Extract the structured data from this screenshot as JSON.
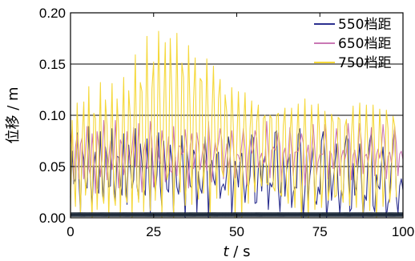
{
  "chart_data": {
    "type": "line",
    "xlabel": "t / s",
    "xlabel_italic": "t",
    "xlabel_rest": " / s",
    "ylabel": "位移 / m",
    "xlim": [
      0,
      100
    ],
    "ylim": [
      0,
      0.2
    ],
    "x_ticks": [
      0,
      25,
      50,
      75,
      100
    ],
    "x_tick_labels": [
      "0",
      "25",
      "50",
      "75",
      "100"
    ],
    "y_ticks": [
      0,
      0.05,
      0.1,
      0.15,
      0.2
    ],
    "y_tick_labels": [
      "0.00",
      "0.05",
      "0.10",
      "0.15",
      "0.20"
    ],
    "grid": "horizontal",
    "legend_position": "top-right",
    "sample_step_s": 0.5,
    "series": [
      {
        "name": "550档距",
        "color": "#2b2f8f",
        "values": [
          0.02,
          0.065,
          0.033,
          0.038,
          0.083,
          0.038,
          0.005,
          0.067,
          0.058,
          0.032,
          0.029,
          0.089,
          0.039,
          0.012,
          0.049,
          0.064,
          0.03,
          0.024,
          0.084,
          0.042,
          0.016,
          0.069,
          0.057,
          0.03,
          0.031,
          0.087,
          0.037,
          0.016,
          0.06,
          0.059,
          0.033,
          0.022,
          0.082,
          0.041,
          0.013,
          0.071,
          0.05,
          0.029,
          0.037,
          0.087,
          0.031,
          0.018,
          0.072,
          0.053,
          0.03,
          0.022,
          0.077,
          0.047,
          0.004,
          0.068,
          0.038,
          0.026,
          0.042,
          0.083,
          0.031,
          0.01,
          0.075,
          0.051,
          0.028,
          0.025,
          0.071,
          0.055,
          0.002,
          0.059,
          0.03,
          0.023,
          0.045,
          0.08,
          0.04,
          0.0,
          0.067,
          0.053,
          0.031,
          0.029,
          0.066,
          0.061,
          0.005,
          0.045,
          0.029,
          0.024,
          0.046,
          0.079,
          0.053,
          0.0,
          0.051,
          0.056,
          0.038,
          0.032,
          0.062,
          0.064,
          0.019,
          0.03,
          0.033,
          0.027,
          0.045,
          0.079,
          0.067,
          0.002,
          0.032,
          0.055,
          0.047,
          0.03,
          0.058,
          0.063,
          0.035,
          0.015,
          0.036,
          0.029,
          0.041,
          0.081,
          0.078,
          0.014,
          0.015,
          0.049,
          0.056,
          0.026,
          0.053,
          0.06,
          0.051,
          0.008,
          0.034,
          0.03,
          0.036,
          0.083,
          0.085,
          0.029,
          0.006,
          0.038,
          0.062,
          0.021,
          0.047,
          0.056,
          0.062,
          0.01,
          0.025,
          0.03,
          0.029,
          0.081,
          0.087,
          0.046,
          0.0,
          0.026,
          0.064,
          0.017,
          0.041,
          0.054,
          0.069,
          0.018,
          0.013,
          0.03,
          0.023,
          0.075,
          0.084,
          0.064,
          0.0,
          0.016,
          0.061,
          0.017,
          0.035,
          0.052,
          0.072,
          0.028,
          0.004,
          0.027,
          0.019,
          0.068,
          0.08,
          0.076,
          0.006,
          0.009,
          0.053,
          0.022,
          0.03,
          0.052,
          0.072,
          0.038,
          0.0,
          0.022,
          0.017,
          0.059,
          0.075,
          0.083,
          0.012,
          0.006,
          0.042,
          0.031,
          0.028,
          0.052,
          0.069,
          0.044,
          0.0,
          0.014,
          0.019,
          0.052,
          0.072,
          0.087,
          0.02,
          0.004,
          0.031,
          0.038,
          0.027
        ]
      },
      {
        "name": "650档距",
        "color": "#c978b4",
        "values": [
          0.072,
          0.087,
          0.037,
          0.069,
          0.081,
          0.038,
          0.072,
          0.078,
          0.038,
          0.063,
          0.089,
          0.048,
          0.041,
          0.082,
          0.06,
          0.024,
          0.084,
          0.07,
          0.04,
          0.057,
          0.095,
          0.063,
          0.037,
          0.058,
          0.075,
          0.047,
          0.058,
          0.095,
          0.056,
          0.029,
          0.076,
          0.071,
          0.042,
          0.053,
          0.084,
          0.062,
          0.052,
          0.066,
          0.088,
          0.05,
          0.049,
          0.092,
          0.054,
          0.025,
          0.065,
          0.074,
          0.048,
          0.052,
          0.094,
          0.075,
          0.03,
          0.052,
          0.08,
          0.06,
          0.053,
          0.085,
          0.069,
          0.035,
          0.059,
          0.079,
          0.046,
          0.044,
          0.089,
          0.059,
          0.041,
          0.07,
          0.07,
          0.062,
          0.064,
          0.086,
          0.067,
          0.029,
          0.071,
          0.082,
          0.048,
          0.061,
          0.083,
          0.071,
          0.047,
          0.059,
          0.072,
          0.057,
          0.046,
          0.094,
          0.067,
          0.035,
          0.058,
          0.074,
          0.065,
          0.073,
          0.087,
          0.076,
          0.038,
          0.057,
          0.072,
          0.049,
          0.06,
          0.085,
          0.068,
          0.039,
          0.062,
          0.061,
          0.055,
          0.071,
          0.087,
          0.067,
          0.032,
          0.059,
          0.077,
          0.063,
          0.067,
          0.085,
          0.078,
          0.049,
          0.058,
          0.063,
          0.053,
          0.055,
          0.094,
          0.065,
          0.039,
          0.066,
          0.069,
          0.066,
          0.07,
          0.083,
          0.07,
          0.035,
          0.062,
          0.068,
          0.051,
          0.063,
          0.088,
          0.066,
          0.041,
          0.064,
          0.064,
          0.065,
          0.072,
          0.082,
          0.073,
          0.032,
          0.062,
          0.071,
          0.049,
          0.066,
          0.091,
          0.066,
          0.042,
          0.055,
          0.062,
          0.062,
          0.062,
          0.091,
          0.069,
          0.038,
          0.065,
          0.062,
          0.048,
          0.069,
          0.087,
          0.069,
          0.041,
          0.059,
          0.066,
          0.057,
          0.064,
          0.092,
          0.073,
          0.037,
          0.061,
          0.066,
          0.051,
          0.066,
          0.092,
          0.074,
          0.043,
          0.06,
          0.062,
          0.054,
          0.064,
          0.088,
          0.068,
          0.041,
          0.061,
          0.067,
          0.058,
          0.066,
          0.091,
          0.072,
          0.038,
          0.06,
          0.064,
          0.054,
          0.064,
          0.089,
          0.072,
          0.041,
          0.062,
          0.065,
          0.057
        ]
      },
      {
        "name": "750档距",
        "color": "#f5d83a",
        "values": [
          0.008,
          0.095,
          0.042,
          0.011,
          0.112,
          0.059,
          0.004,
          0.077,
          0.113,
          0.022,
          0.04,
          0.128,
          0.036,
          0.0,
          0.102,
          0.097,
          0.008,
          0.053,
          0.132,
          0.024,
          0.014,
          0.115,
          0.09,
          0.0,
          0.066,
          0.131,
          0.023,
          0.012,
          0.116,
          0.085,
          0.001,
          0.076,
          0.137,
          0.023,
          0.015,
          0.124,
          0.097,
          0.0,
          0.077,
          0.159,
          0.034,
          0.015,
          0.132,
          0.123,
          0.006,
          0.07,
          0.177,
          0.061,
          0.007,
          0.126,
          0.152,
          0.017,
          0.06,
          0.182,
          0.094,
          0.0,
          0.102,
          0.171,
          0.037,
          0.044,
          0.175,
          0.119,
          0.0,
          0.073,
          0.18,
          0.066,
          0.025,
          0.151,
          0.137,
          0.012,
          0.045,
          0.168,
          0.099,
          0.013,
          0.114,
          0.156,
          0.046,
          0.018,
          0.136,
          0.133,
          0.024,
          0.068,
          0.155,
          0.086,
          0.0,
          0.095,
          0.148,
          0.072,
          0.019,
          0.116,
          0.135,
          0.047,
          0.04,
          0.12,
          0.103,
          0.022,
          0.057,
          0.127,
          0.086,
          0.0,
          0.07,
          0.123,
          0.075,
          0.0,
          0.081,
          0.122,
          0.06,
          0.014,
          0.087,
          0.114,
          0.045,
          0.025,
          0.093,
          0.11,
          0.042,
          0.031,
          0.097,
          0.1,
          0.034,
          0.032,
          0.1,
          0.097,
          0.03,
          0.026,
          0.1,
          0.102,
          0.025,
          0.021,
          0.09,
          0.107,
          0.033,
          0.014,
          0.081,
          0.107,
          0.044,
          0.01,
          0.074,
          0.111,
          0.049,
          0.0,
          0.066,
          0.116,
          0.055,
          0.0,
          0.06,
          0.11,
          0.071,
          0.008,
          0.048,
          0.111,
          0.075,
          0.01,
          0.04,
          0.104,
          0.08,
          0.017,
          0.032,
          0.101,
          0.093,
          0.02,
          0.022,
          0.098,
          0.096,
          0.028,
          0.015,
          0.089,
          0.096,
          0.039,
          0.012,
          0.081,
          0.109,
          0.039,
          0.01,
          0.077,
          0.112,
          0.049,
          0.003,
          0.068,
          0.11,
          0.061,
          0.007,
          0.056,
          0.11,
          0.066,
          0.0,
          0.048,
          0.106,
          0.074,
          0.011,
          0.041,
          0.105,
          0.087,
          0.015,
          0.034,
          0.099,
          0.09,
          0.02
        ]
      }
    ]
  }
}
